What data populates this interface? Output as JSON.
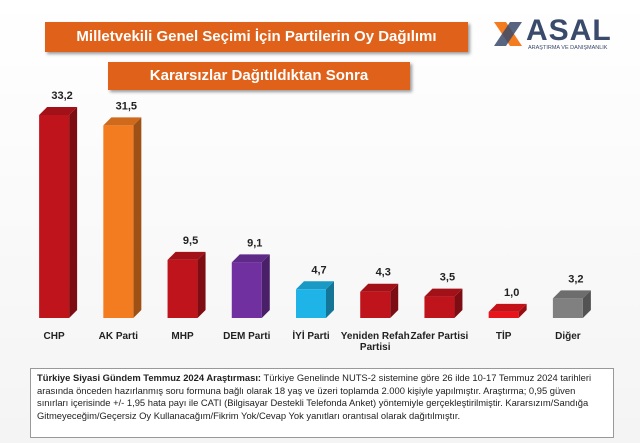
{
  "chart_data": {
    "type": "bar3d",
    "title": "Milletvekili Genel Seçimi İçin Partilerin Oy Dağılımı",
    "subtitle": "Kararsızlar Dağıtıldıktan Sonra",
    "categories": [
      "CHP",
      "AK Parti",
      "MHP",
      "DEM Parti",
      "İYİ Parti",
      "Yeniden Refah Partisi",
      "Zafer Partisi",
      "TİP",
      "Diğer"
    ],
    "values": [
      33.2,
      31.5,
      9.5,
      9.1,
      4.7,
      4.3,
      3.5,
      1.0,
      3.2
    ],
    "value_labels": [
      "33,2",
      "31,5",
      "9,5",
      "9,1",
      "4,7",
      "4,3",
      "3,5",
      "1,0",
      "3,2"
    ],
    "colors": [
      "#c0141c",
      "#f47c20",
      "#c0141c",
      "#7030a0",
      "#1fb4e8",
      "#c0141c",
      "#c0141c",
      "#e8141c",
      "#808080"
    ]
  },
  "logo": {
    "name": "ASAL",
    "tagline": "ARAŞTIRMA VE DANIŞMANLIK"
  },
  "note": {
    "heading": "Türkiye Siyasi Gündem Temmuz 2024 Araştırması:",
    "text": "Türkiye Genelinde NUTS-2 sistemine göre 26 ilde 10-17 Temmuz 2024 tarihleri arasında önceden hazırlanmış soru formuna bağlı olarak 18 yaş ve üzeri toplamda 2.000 kişiyle yapılmıştır. Araştırma; 0,95 güven sınırları içerisinde +/- 1,95 hata payı ile CATI (Bilgisayar Destekli Telefonda Anket) yöntemiyle gerçekleştirilmiştir. Kararsızım/Sandığa Gitmeyeceğim/Geçersiz Oy Kullanacağım/Fikrim Yok/Cevap Yok yanıtları orantısal olarak dağıtılmıştır."
  }
}
